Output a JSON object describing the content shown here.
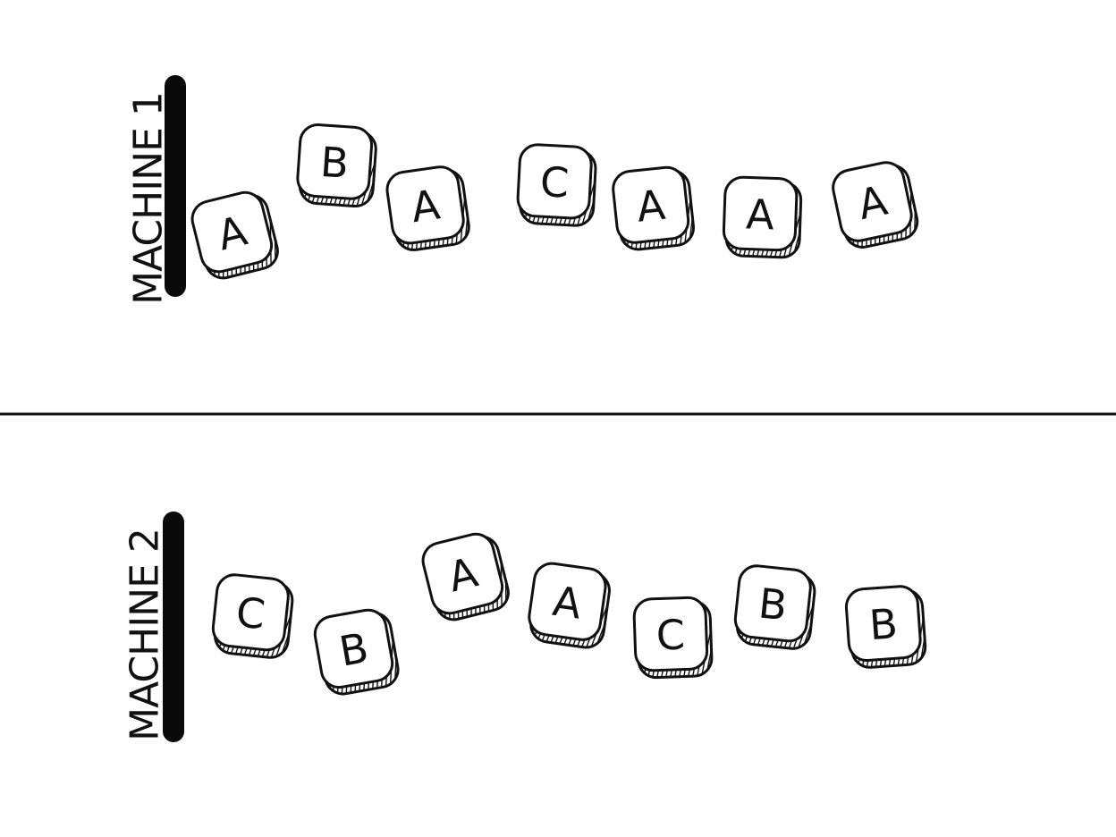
{
  "machines": [
    {
      "label": "MACHINE 1",
      "tiles": [
        "A",
        "B",
        "A",
        "C",
        "A",
        "A",
        "A"
      ]
    },
    {
      "label": "MACHINE 2",
      "tiles": [
        "C",
        "B",
        "A",
        "A",
        "C",
        "B",
        "B"
      ]
    }
  ]
}
